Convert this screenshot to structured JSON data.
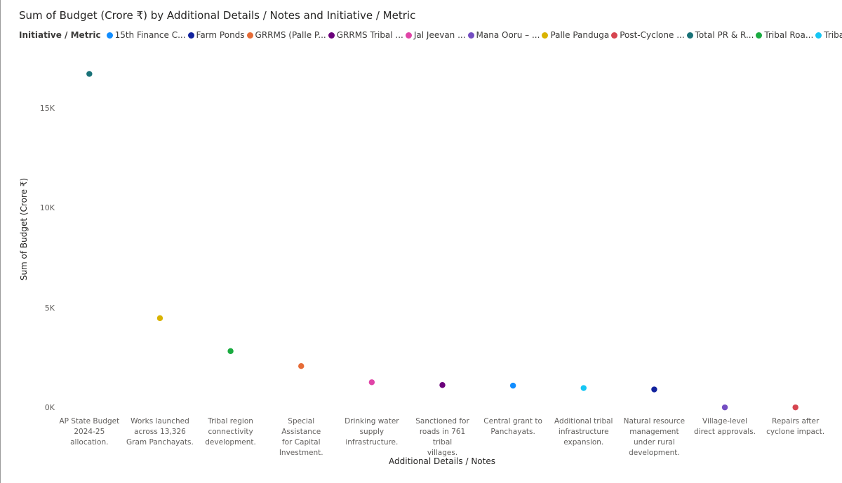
{
  "chart_data": {
    "type": "scatter",
    "title": "Sum of Budget (Crore ₹) by Additional Details / Notes and Initiative / Metric",
    "xlabel": "Additional Details / Notes",
    "ylabel": "Sum of Budget (Crore ₹)",
    "ylim": [
      0,
      17000
    ],
    "yticks": [
      {
        "value": 0,
        "label": "0K"
      },
      {
        "value": 5000,
        "label": "5K"
      },
      {
        "value": 10000,
        "label": "10K"
      },
      {
        "value": 15000,
        "label": "15K"
      }
    ],
    "legend_title": "Initiative / Metric",
    "legend_position": "top",
    "grid": false,
    "legend": [
      {
        "name": "15th Finance C...",
        "color": "#118DFF"
      },
      {
        "name": "Farm Ponds",
        "color": "#12239E"
      },
      {
        "name": "GRRMS (Palle P...",
        "color": "#E66C37"
      },
      {
        "name": "GRRMS Tribal ...",
        "color": "#6B007B"
      },
      {
        "name": "Jal Jeevan ...",
        "color": "#E044A7"
      },
      {
        "name": "Mana Ooru – ...",
        "color": "#744EC2"
      },
      {
        "name": "Palle Panduga",
        "color": "#D9B300"
      },
      {
        "name": "Post-Cyclone ...",
        "color": "#D64550"
      },
      {
        "name": "Total PR & R...",
        "color": "#197278"
      },
      {
        "name": "Tribal Roa...",
        "color": "#1AAB40"
      },
      {
        "name": "Tribal Roa...",
        "color": "#15C6F4"
      }
    ],
    "categories": [
      [
        "AP State Budget",
        "2024-25",
        "allocation."
      ],
      [
        "Works launched",
        "across 13,326",
        "Gram Panchayats."
      ],
      [
        "Tribal region",
        "connectivity",
        "development."
      ],
      [
        "Special Assistance",
        "for Capital",
        "Investment."
      ],
      [
        "Drinking water",
        "supply",
        "infrastructure."
      ],
      [
        "Sanctioned for",
        "roads in 761 tribal",
        "villages."
      ],
      [
        "Central grant to",
        "Panchayats."
      ],
      [
        "Additional tribal",
        "infrastructure",
        "expansion."
      ],
      [
        "Natural resource",
        "management",
        "under rural",
        "development."
      ],
      [
        "Village-level",
        "direct approvals."
      ],
      [
        "Repairs after",
        "cyclone impact."
      ]
    ],
    "points": [
      {
        "category_index": 0,
        "value": 16740,
        "color": "#197278"
      },
      {
        "category_index": 1,
        "value": 4500,
        "color": "#D9B300"
      },
      {
        "category_index": 2,
        "value": 2850,
        "color": "#1AAB40"
      },
      {
        "category_index": 3,
        "value": 2100,
        "color": "#E66C37"
      },
      {
        "category_index": 4,
        "value": 1290,
        "color": "#E044A7"
      },
      {
        "category_index": 5,
        "value": 1150,
        "color": "#6B007B"
      },
      {
        "category_index": 6,
        "value": 1120,
        "color": "#118DFF"
      },
      {
        "category_index": 7,
        "value": 1000,
        "color": "#15C6F4"
      },
      {
        "category_index": 8,
        "value": 930,
        "color": "#12239E"
      },
      {
        "category_index": 9,
        "value": 30,
        "color": "#744EC2"
      },
      {
        "category_index": 10,
        "value": 30,
        "color": "#D64550"
      }
    ]
  }
}
